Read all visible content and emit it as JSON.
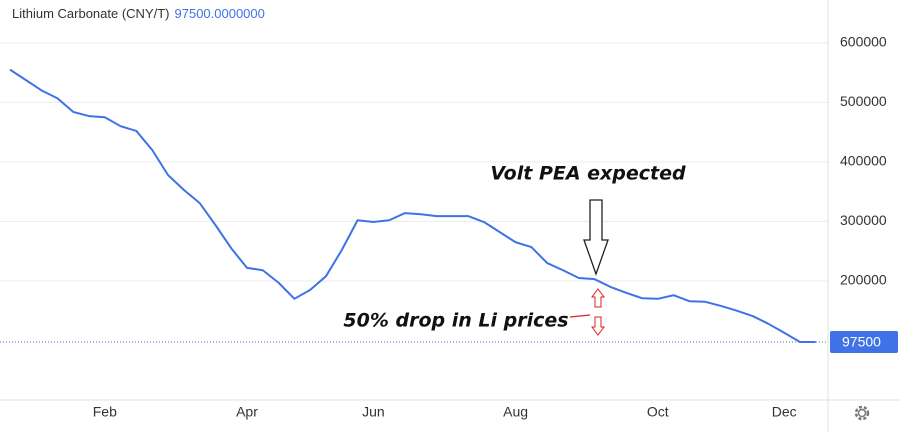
{
  "chart_data": {
    "type": "line",
    "title": "Lithium Carbonate (CNY/T)",
    "last_price_text": "97500.0000000",
    "categories": [
      null,
      null,
      null,
      null,
      null,
      null,
      "Feb",
      null,
      null,
      null,
      null,
      null,
      null,
      null,
      null,
      "Apr",
      null,
      null,
      null,
      null,
      null,
      null,
      null,
      "Jun",
      null,
      null,
      null,
      null,
      null,
      null,
      null,
      null,
      "Aug",
      null,
      null,
      null,
      null,
      null,
      null,
      null,
      null,
      "Oct",
      null,
      null,
      null,
      null,
      null,
      null,
      null,
      "Dec",
      null,
      null
    ],
    "series": [
      {
        "name": "Lithium Carbonate",
        "color": "#3f72e6",
        "values": [
          555000,
          537600,
          520000,
          507000,
          484000,
          477000,
          475000,
          460000,
          452000,
          420000,
          378000,
          353000,
          331000,
          294000,
          255000,
          222000,
          218000,
          197000,
          170000,
          185000,
          208000,
          252000,
          302000,
          299000,
          302000,
          314000,
          312000,
          309000,
          309000,
          309000,
          299000,
          282000,
          265000,
          257000,
          230000,
          218000,
          205000,
          203000,
          190000,
          180000,
          171000,
          170000,
          176000,
          166000,
          165000,
          158000,
          150000,
          141000,
          128000,
          113000,
          97500,
          97500
        ]
      }
    ],
    "ylim": [
      0,
      672000
    ],
    "yticks": [
      200000,
      300000,
      400000,
      500000,
      600000
    ],
    "grid": true,
    "annotations": [
      "Volt PEA expected",
      "50% drop in Li prices"
    ]
  }
}
